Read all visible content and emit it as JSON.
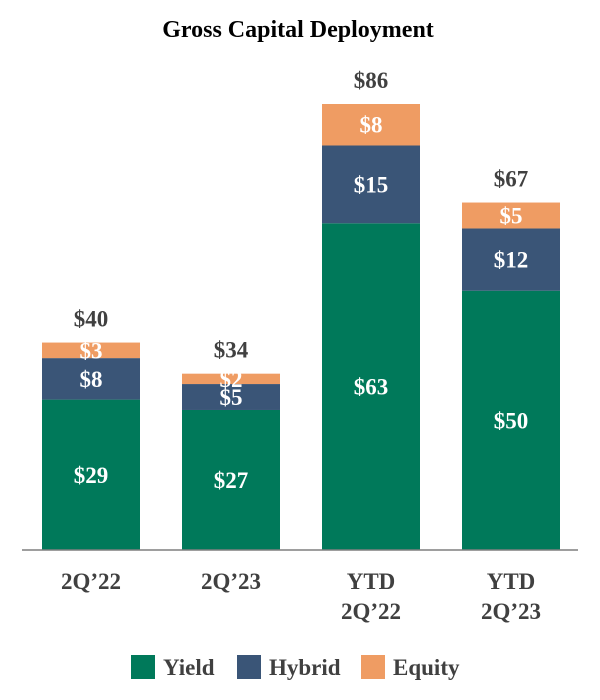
{
  "chart_data": {
    "type": "bar",
    "stacked": true,
    "title": "Gross Capital Deployment",
    "xlabel": "",
    "ylabel": "",
    "ylim": [
      0,
      100
    ],
    "grid": false,
    "legend_position": "bottom",
    "categories": [
      [
        "2Q’22"
      ],
      [
        "2Q’23"
      ],
      [
        "YTD",
        "2Q’22"
      ],
      [
        "YTD",
        "2Q’23"
      ]
    ],
    "series": [
      {
        "name": "Yield",
        "color": "#00795a",
        "values": [
          29,
          27,
          63,
          50
        ],
        "labels": [
          "$29",
          "$27",
          "$63",
          "$50"
        ]
      },
      {
        "name": "Hybrid",
        "color": "#3a5577",
        "values": [
          8,
          5,
          15,
          12
        ],
        "labels": [
          "$8",
          "$5",
          "$15",
          "$12"
        ]
      },
      {
        "name": "Equity",
        "color": "#ef9c63",
        "values": [
          3,
          2,
          8,
          5
        ],
        "labels": [
          "$3",
          "$2",
          "$8",
          "$5"
        ]
      }
    ],
    "totals": [
      40,
      34,
      86,
      67
    ],
    "total_labels": [
      "$40",
      "$34",
      "$86",
      "$67"
    ]
  }
}
